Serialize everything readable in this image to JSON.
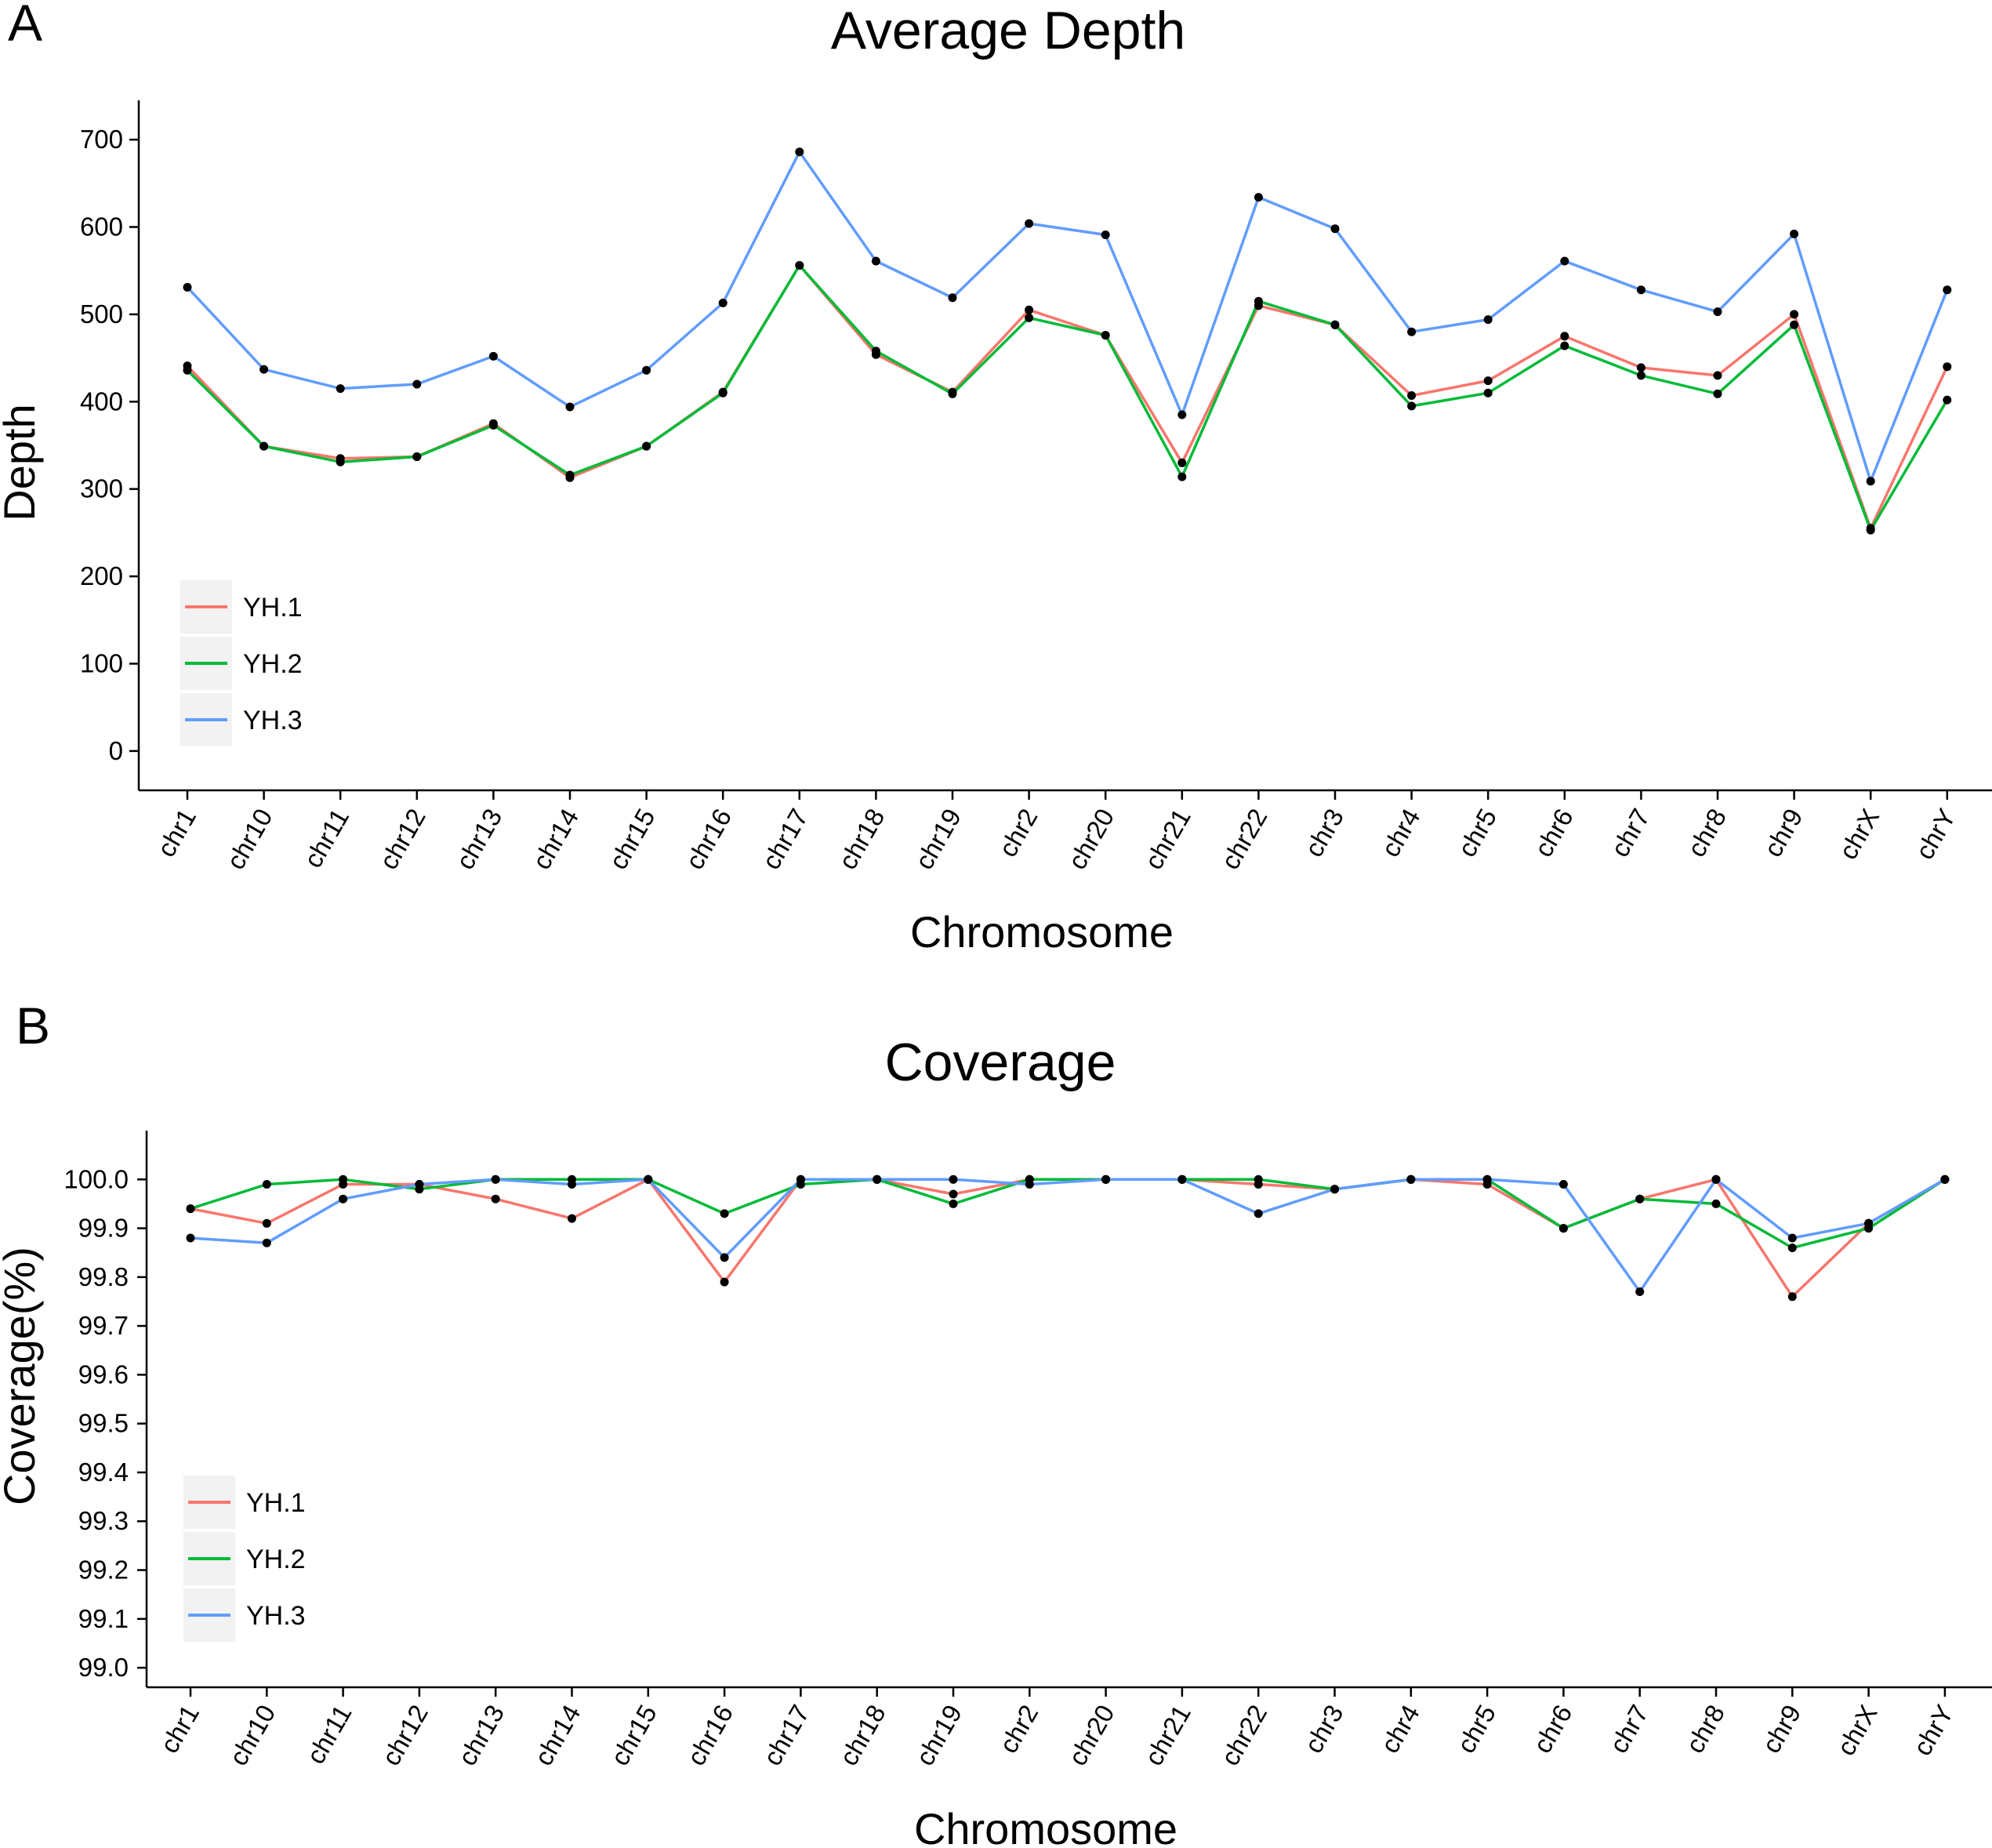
{
  "chart_data": [
    {
      "panel_label": "A",
      "type": "line",
      "title": "Average Depth",
      "xlabel": "Chromosome",
      "ylabel": "Depth",
      "ylim": [
        -45,
        745
      ],
      "yticks": [
        0,
        100,
        200,
        300,
        400,
        500,
        600,
        700
      ],
      "grid": false,
      "legend_position": "bottom-left",
      "categories": [
        "chr1",
        "chr10",
        "chr11",
        "chr12",
        "chr13",
        "chr14",
        "chr15",
        "chr16",
        "chr17",
        "chr18",
        "chr19",
        "chr2",
        "chr20",
        "chr21",
        "chr22",
        "chr3",
        "chr4",
        "chr5",
        "chr6",
        "chr7",
        "chr8",
        "chr9",
        "chrX",
        "chrY"
      ],
      "series": [
        {
          "name": "YH.1",
          "color": "#F8766D",
          "values": [
            441,
            349,
            335,
            337,
            375,
            313,
            349,
            411,
            556,
            454,
            411,
            505,
            476,
            330,
            510,
            488,
            407,
            424,
            475,
            439,
            430,
            500,
            255,
            440
          ]
        },
        {
          "name": "YH.2",
          "color": "#00BA38",
          "values": [
            436,
            349,
            331,
            337,
            373,
            316,
            349,
            410,
            556,
            458,
            409,
            496,
            476,
            314,
            515,
            488,
            395,
            410,
            464,
            430,
            409,
            488,
            253,
            402
          ]
        },
        {
          "name": "YH.3",
          "color": "#619CFF",
          "values": [
            531,
            437,
            415,
            420,
            452,
            394,
            436,
            513,
            686,
            561,
            519,
            604,
            591,
            385,
            634,
            598,
            480,
            494,
            561,
            528,
            503,
            592,
            309,
            528
          ]
        }
      ]
    },
    {
      "panel_label": "B",
      "type": "line",
      "title": "Coverage",
      "xlabel": "Chromosome",
      "ylabel": "Coverage(%)",
      "ylim": [
        98.96,
        100.1
      ],
      "yticks": [
        "99.0",
        "99.1",
        "99.2",
        "99.3",
        "99.4",
        "99.5",
        "99.6",
        "99.7",
        "99.8",
        "99.9",
        "100.0"
      ],
      "grid": false,
      "legend_position": "bottom-left",
      "categories": [
        "chr1",
        "chr10",
        "chr11",
        "chr12",
        "chr13",
        "chr14",
        "chr15",
        "chr16",
        "chr17",
        "chr18",
        "chr19",
        "chr2",
        "chr20",
        "chr21",
        "chr22",
        "chr3",
        "chr4",
        "chr5",
        "chr6",
        "chr7",
        "chr8",
        "chr9",
        "chrX",
        "chrY"
      ],
      "series": [
        {
          "name": "YH.1",
          "color": "#F8766D",
          "values": [
            99.94,
            99.91,
            99.99,
            99.99,
            99.96,
            99.92,
            100.0,
            99.79,
            100.0,
            100.0,
            99.97,
            100.0,
            100.0,
            100.0,
            99.99,
            99.98,
            100.0,
            99.99,
            99.9,
            99.96,
            100.0,
            99.76,
            99.91,
            100.0
          ]
        },
        {
          "name": "YH.2",
          "color": "#00BA38",
          "values": [
            99.94,
            99.99,
            100.0,
            99.98,
            100.0,
            100.0,
            100.0,
            99.93,
            99.99,
            100.0,
            99.95,
            100.0,
            100.0,
            100.0,
            100.0,
            99.98,
            100.0,
            100.0,
            99.9,
            99.96,
            99.95,
            99.86,
            99.9,
            100.0
          ]
        },
        {
          "name": "YH.3",
          "color": "#619CFF",
          "values": [
            99.88,
            99.87,
            99.96,
            99.99,
            100.0,
            99.99,
            100.0,
            99.84,
            100.0,
            100.0,
            100.0,
            99.99,
            100.0,
            100.0,
            99.93,
            99.98,
            100.0,
            100.0,
            99.99,
            99.77,
            100.0,
            99.88,
            99.91,
            100.0
          ]
        }
      ]
    }
  ]
}
